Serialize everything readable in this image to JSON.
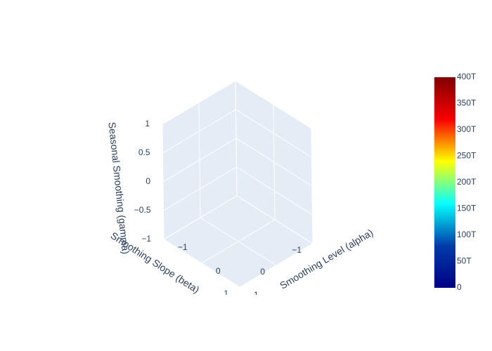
{
  "chart_data": {
    "type": "surface",
    "title": "",
    "scene": {
      "background": "#e5ecf6",
      "gridcolor": "#ffffff",
      "x": {
        "label": "Smoothing Level (alpha)",
        "range": [
          -1,
          1
        ],
        "ticks": [
          -1,
          0,
          1
        ],
        "tick_labels": [
          "−1",
          "0",
          "1"
        ]
      },
      "y": {
        "label": "Smoothing Slope (beta)",
        "range": [
          -1,
          1
        ],
        "ticks": [
          -1,
          0,
          1
        ],
        "tick_labels": [
          "−1",
          "0",
          "1"
        ]
      },
      "z": {
        "label": "Seasonal Smoothing (gamma)",
        "range": [
          -1,
          1
        ],
        "ticks": [
          -1,
          -0.5,
          0,
          0.5,
          1
        ],
        "tick_labels": [
          "−1",
          "−0.5",
          "0",
          "0.5",
          "1"
        ]
      }
    },
    "colorbar": {
      "colorscale": "Jet",
      "range": [
        0,
        400
      ],
      "ticks": [
        0,
        50,
        100,
        150,
        200,
        250,
        300,
        350,
        400
      ],
      "tick_labels": [
        "0",
        "50T",
        "100T",
        "150T",
        "200T",
        "250T",
        "300T",
        "350T",
        "400T"
      ],
      "colors": [
        "#000083",
        "#003caa",
        "#05ffff",
        "#ffff00",
        "#fa0000",
        "#800000"
      ]
    },
    "series": []
  }
}
